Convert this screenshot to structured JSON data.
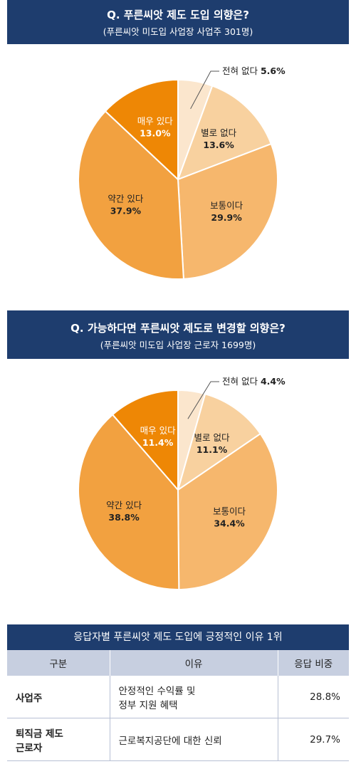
{
  "chart1": {
    "title": "Q. 푸른씨앗 제도 도입 의향은?",
    "subtitle": "(푸른씨앗 미도입 사업장 사업주 301명)"
  },
  "chart2": {
    "title": "Q. 가능하다면 푸른씨앗 제도로 변경할 의향은?",
    "subtitle": "(푸른씨앗 미도입 사업장 근로자 1699명)"
  },
  "colors": {
    "navy": "#1e3d6e",
    "slices": [
      "#fbe6cd",
      "#f8d19f",
      "#f6b76d",
      "#f2a140",
      "#ee8705"
    ]
  },
  "chart_data": [
    {
      "type": "pie",
      "title": "Q. 푸른씨앗 제도 도입 의향은?",
      "categories": [
        "전혀 없다",
        "별로 없다",
        "보통이다",
        "약간 있다",
        "매우 있다"
      ],
      "values": [
        5.6,
        13.6,
        29.9,
        37.9,
        13.0
      ],
      "display_values": [
        "5.6%",
        "13.6%",
        "29.9%",
        "37.9%",
        "13.0%"
      ]
    },
    {
      "type": "pie",
      "title": "Q. 가능하다면 푸른씨앗 제도로 변경할 의향은?",
      "categories": [
        "전혀 없다",
        "별로 없다",
        "보통이다",
        "약간 있다",
        "매우 있다"
      ],
      "values": [
        4.4,
        11.1,
        34.4,
        38.8,
        11.4
      ],
      "display_values": [
        "4.4%",
        "11.1%",
        "34.4%",
        "38.8%",
        "11.4%"
      ]
    }
  ],
  "table": {
    "title": "응답자별 푸른씨앗 제도 도입에 긍정적인 이유 1위",
    "headers": [
      "구분",
      "이유",
      "응답 비중"
    ],
    "rows": [
      {
        "group": "사업주",
        "reason_line1": "안정적인 수익률 및",
        "reason_line2": "정부 지원 혜택",
        "share": "28.8%"
      },
      {
        "group_line1": "퇴직금 제도",
        "group_line2": "근로자",
        "reason": "근로복지공단에 대한 신뢰",
        "share": "29.7%"
      }
    ]
  }
}
